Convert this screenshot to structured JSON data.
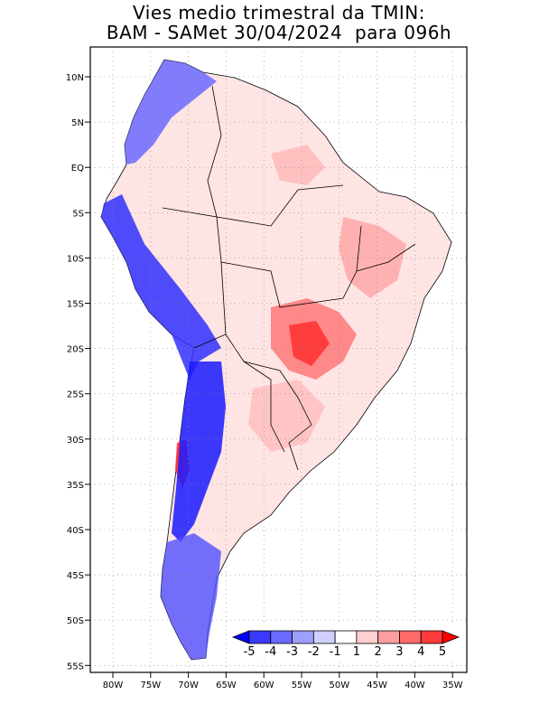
{
  "title_line1": "Vies medio trimestral da TMIN:",
  "title_line2": "BAM - SAMet 30/04/2024  para 096h",
  "lat_labels": [
    "10N",
    "5N",
    "EQ",
    "5S",
    "10S",
    "15S",
    "20S",
    "25S",
    "30S",
    "35S",
    "40S",
    "45S",
    "50S",
    "55S"
  ],
  "lon_labels": [
    "80W",
    "75W",
    "70W",
    "65W",
    "60W",
    "55W",
    "50W",
    "45W",
    "40W",
    "35W"
  ],
  "colorbar": {
    "tick_labels": [
      "-5",
      "-4",
      "-3",
      "-2",
      "-1",
      "1",
      "2",
      "3",
      "4",
      "5"
    ],
    "colors": [
      "#0000ff",
      "#3a3aff",
      "#6a6aff",
      "#9e9eff",
      "#cfcfff",
      "#ffffff",
      "#ffcfcf",
      "#ff9e9e",
      "#ff6a6a",
      "#ff3a3a",
      "#ff0000"
    ]
  },
  "map": {
    "grid": "dotted",
    "negative_color": "#0000ff",
    "positive_color": "#ff0000"
  }
}
